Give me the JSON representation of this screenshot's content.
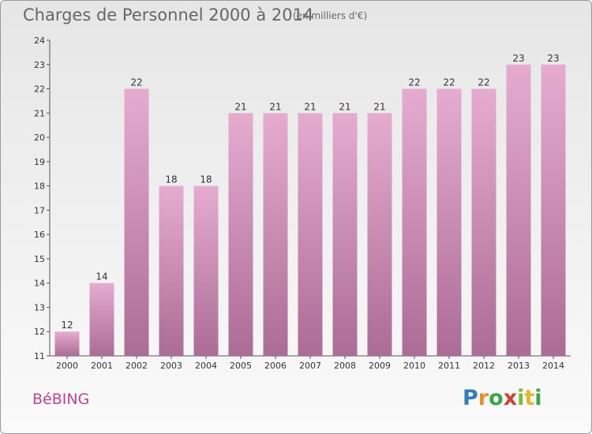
{
  "header": {
    "title": "Charges de Personnel 2000 à 2014",
    "unit": "(en milliers d'€)"
  },
  "commune": "BéBING",
  "logo": {
    "letters": [
      "P",
      "r",
      "o",
      "x",
      "i",
      "t",
      "i"
    ],
    "colors": [
      "#2f7fc1",
      "#e3912c",
      "#3aa64a",
      "#d2412e",
      "#7ab93d",
      "#e5b52d",
      "#3aa64a"
    ]
  },
  "colors": {
    "bar_top": "#e6acd0",
    "bar_bottom": "#ab6c95",
    "accent": "#c8418e"
  },
  "chart_data": {
    "type": "bar",
    "categories": [
      "2000",
      "2001",
      "2002",
      "2003",
      "2004",
      "2005",
      "2006",
      "2007",
      "2008",
      "2009",
      "2010",
      "2011",
      "2012",
      "2013",
      "2014"
    ],
    "values": [
      12,
      14,
      22,
      18,
      18,
      21,
      21,
      21,
      21,
      21,
      22,
      22,
      22,
      23,
      23
    ],
    "y_ticks": [
      11,
      12,
      13,
      14,
      15,
      16,
      17,
      18,
      19,
      20,
      21,
      22,
      23,
      24
    ],
    "ylim": [
      11,
      24
    ],
    "grid": false,
    "data_labels": true
  }
}
